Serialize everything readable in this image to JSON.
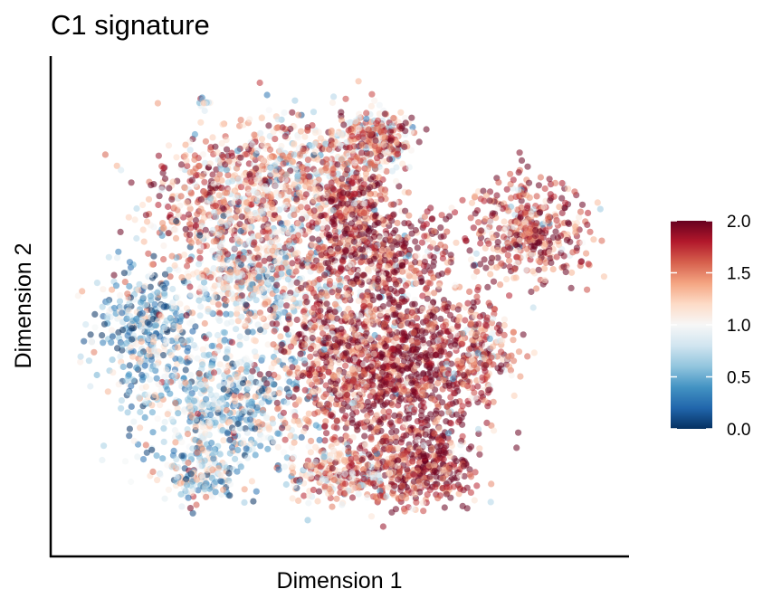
{
  "chart_data": {
    "type": "scatter",
    "title": "C1 signature",
    "xlabel": "Dimension 1",
    "ylabel": "Dimension 2",
    "x_ticks_shown": false,
    "y_ticks_shown": false,
    "grid": false,
    "point_opacity": 0.55,
    "colorbar": {
      "min": 0.0,
      "max": 2.0,
      "ticks": [
        "0.0",
        "0.5",
        "1.0",
        "1.5",
        "2.0"
      ],
      "tick_values": [
        0.0,
        0.5,
        1.0,
        1.5,
        2.0
      ],
      "colors": [
        "#053061",
        "#2166ac",
        "#4393c3",
        "#92c5de",
        "#d1e5f0",
        "#f7f7f7",
        "#fddbc7",
        "#f4a582",
        "#d6604d",
        "#b2182b",
        "#67001f"
      ],
      "placement": "right"
    },
    "regions": [
      {
        "cx": 0.27,
        "cy": 0.72,
        "rx": 0.13,
        "ry": 0.13,
        "value": 1.5,
        "n": 420
      },
      {
        "cx": 0.14,
        "cy": 0.46,
        "rx": 0.09,
        "ry": 0.12,
        "value": 0.6,
        "n": 360
      },
      {
        "cx": 0.28,
        "cy": 0.3,
        "rx": 0.15,
        "ry": 0.13,
        "value": 0.75,
        "n": 650
      },
      {
        "cx": 0.35,
        "cy": 0.56,
        "rx": 0.13,
        "ry": 0.12,
        "value": 1.0,
        "n": 550
      },
      {
        "cx": 0.42,
        "cy": 0.78,
        "rx": 0.14,
        "ry": 0.12,
        "value": 1.2,
        "n": 520
      },
      {
        "cx": 0.56,
        "cy": 0.62,
        "rx": 0.13,
        "ry": 0.1,
        "value": 1.7,
        "n": 480
      },
      {
        "cx": 0.62,
        "cy": 0.38,
        "rx": 0.13,
        "ry": 0.17,
        "value": 1.9,
        "n": 900
      },
      {
        "cx": 0.49,
        "cy": 0.4,
        "rx": 0.1,
        "ry": 0.16,
        "value": 1.6,
        "n": 520
      },
      {
        "cx": 0.64,
        "cy": 0.16,
        "rx": 0.11,
        "ry": 0.07,
        "value": 1.85,
        "n": 400
      },
      {
        "cx": 0.5,
        "cy": 0.15,
        "rx": 0.09,
        "ry": 0.06,
        "value": 1.3,
        "n": 260
      },
      {
        "cx": 0.76,
        "cy": 0.4,
        "rx": 0.06,
        "ry": 0.1,
        "value": 1.5,
        "n": 200
      },
      {
        "cx": 0.85,
        "cy": 0.66,
        "rx": 0.1,
        "ry": 0.1,
        "value": 1.6,
        "n": 420
      },
      {
        "cx": 0.56,
        "cy": 0.85,
        "rx": 0.07,
        "ry": 0.06,
        "value": 1.3,
        "n": 180
      },
      {
        "cx": 0.52,
        "cy": 0.73,
        "rx": 0.06,
        "ry": 0.07,
        "value": 1.7,
        "n": 200
      },
      {
        "cx": 0.24,
        "cy": 0.14,
        "rx": 0.06,
        "ry": 0.05,
        "value": 0.9,
        "n": 150
      },
      {
        "cx": 0.245,
        "cy": 0.935,
        "rx": 0.012,
        "ry": 0.012,
        "value": 0.8,
        "n": 12
      },
      {
        "cx": 0.58,
        "cy": 0.86,
        "rx": 0.05,
        "ry": 0.05,
        "value": 1.6,
        "n": 120
      }
    ]
  }
}
